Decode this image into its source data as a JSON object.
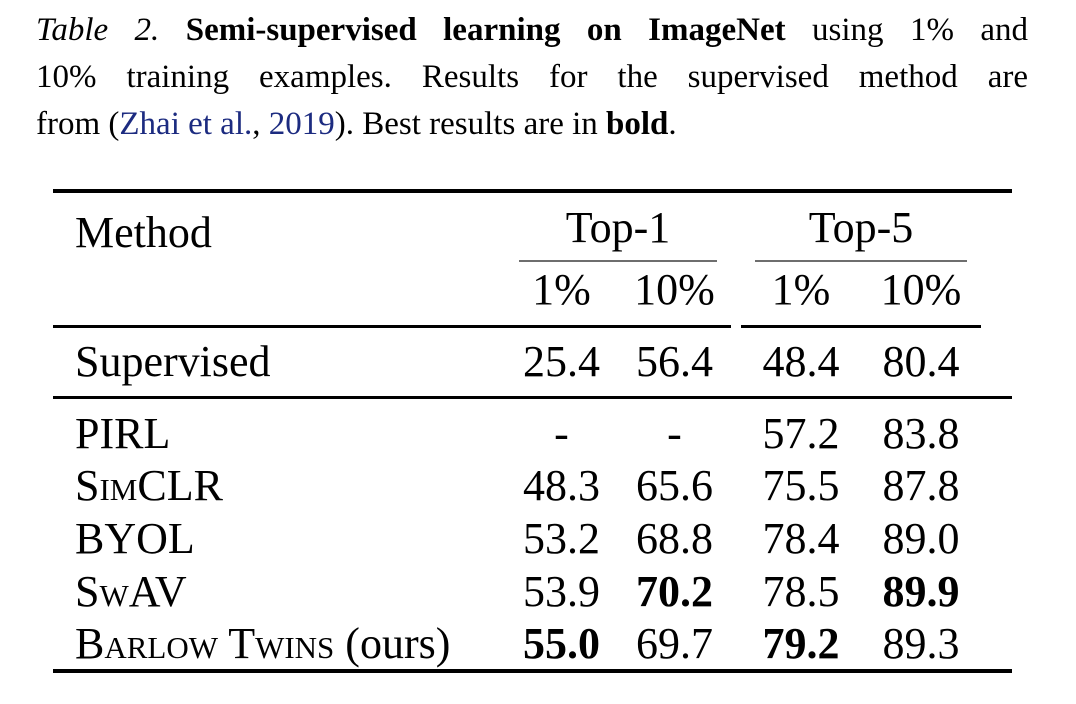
{
  "caption": {
    "line1": {
      "label": "Table 2. ",
      "title_bold": "Semi-supervised learning on ImageNet",
      "rest": " using 1% and"
    },
    "line2": "10% training examples.  Results for the supervised method are",
    "line3": {
      "pre": "from (",
      "citation_authors": "Zhai et al.",
      "citation_sep": ", ",
      "citation_year": "2019",
      "mid": "). Best results are in ",
      "bold_term": "bold",
      "end": "."
    }
  },
  "table": {
    "header": {
      "method_label": "Method",
      "groups": [
        {
          "label": "Top-1",
          "sub": [
            "1%",
            "10%"
          ]
        },
        {
          "label": "Top-5",
          "sub": [
            "1%",
            "10%"
          ]
        }
      ]
    },
    "rows": [
      {
        "method_sc": "",
        "method_plain": "Supervised",
        "values": [
          {
            "text": "25.4",
            "bold": false
          },
          {
            "text": "56.4",
            "bold": false
          },
          {
            "text": "48.4",
            "bold": false
          },
          {
            "text": "80.4",
            "bold": false
          }
        ]
      },
      {
        "method_sc": "PIRL",
        "method_plain": "",
        "values": [
          {
            "text": "-",
            "bold": false
          },
          {
            "text": "-",
            "bold": false
          },
          {
            "text": "57.2",
            "bold": false
          },
          {
            "text": "83.8",
            "bold": false
          }
        ]
      },
      {
        "method_sc": "SimCLR",
        "method_plain": "",
        "values": [
          {
            "text": "48.3",
            "bold": false
          },
          {
            "text": "65.6",
            "bold": false
          },
          {
            "text": "75.5",
            "bold": false
          },
          {
            "text": "87.8",
            "bold": false
          }
        ]
      },
      {
        "method_sc": "BYOL",
        "method_plain": "",
        "values": [
          {
            "text": "53.2",
            "bold": false
          },
          {
            "text": "68.8",
            "bold": false
          },
          {
            "text": "78.4",
            "bold": false
          },
          {
            "text": "89.0",
            "bold": false
          }
        ]
      },
      {
        "method_sc": "SwAV",
        "method_plain": "",
        "values": [
          {
            "text": "53.9",
            "bold": false
          },
          {
            "text": "70.2",
            "bold": true
          },
          {
            "text": "78.5",
            "bold": false
          },
          {
            "text": "89.9",
            "bold": true
          }
        ]
      },
      {
        "method_sc": "Barlow Twins",
        "method_plain": " (ours)",
        "values": [
          {
            "text": "55.0",
            "bold": true
          },
          {
            "text": "69.7",
            "bold": false
          },
          {
            "text": "79.2",
            "bold": true
          },
          {
            "text": "89.3",
            "bold": false
          }
        ]
      }
    ]
  },
  "colors": {
    "citation_link": "#1c2b80",
    "cmidrule": "#6e6e6e",
    "text": "#000000",
    "background": "#ffffff"
  }
}
